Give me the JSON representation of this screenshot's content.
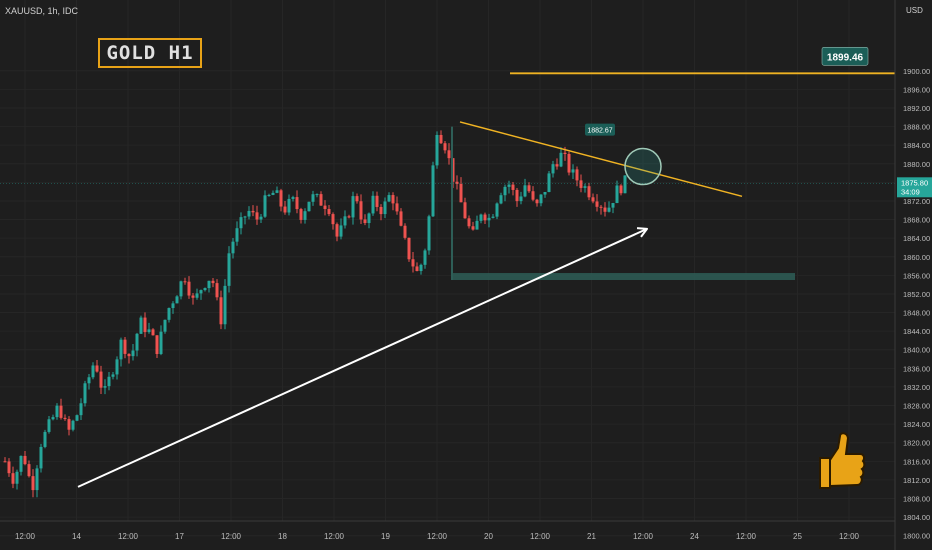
{
  "symbol": "XAUUSD, 1h, IDC",
  "currency": "USD",
  "title_box": "GOLD  H1",
  "colors": {
    "background": "#1e1e1e",
    "bull": "#26a69a",
    "bear": "#ef5350",
    "trendline": "#f0b323",
    "arrow": "#ffffff",
    "support_zone": "#2e5e57",
    "price_tag": "#1b5e57"
  },
  "icons": [
    "thumbs-up-icon"
  ],
  "chart_data": {
    "type": "candlestick",
    "ylim": [
      1798,
      1912
    ],
    "y_ticks": [
      1800,
      1804,
      1808,
      1812,
      1816,
      1820,
      1824,
      1828,
      1832,
      1836,
      1840,
      1844,
      1848,
      1852,
      1856,
      1860,
      1864,
      1868,
      1872,
      1876,
      1880,
      1884,
      1888,
      1892,
      1896,
      1900
    ],
    "x_ticks": [
      "12:00",
      "14",
      "12:00",
      "17",
      "12:00",
      "18",
      "12:00",
      "19",
      "12:00",
      "20",
      "12:00",
      "21",
      "12:00",
      "24",
      "12:00",
      "25",
      "12:00"
    ],
    "current_price": "1875.80",
    "countdown": "34:09",
    "annotations": {
      "resistance_level": "1899.46",
      "swing_high": "1882.67"
    },
    "path": [
      1816,
      1812,
      1818,
      1810,
      1820,
      1824,
      1828,
      1822,
      1826,
      1832,
      1838,
      1830,
      1836,
      1842,
      1838,
      1846,
      1844,
      1840,
      1848,
      1852,
      1856,
      1850,
      1854,
      1856,
      1846,
      1862,
      1866,
      1870,
      1868,
      1872,
      1874,
      1870,
      1872,
      1869,
      1873,
      1872,
      1871,
      1864,
      1868,
      1874,
      1866,
      1872,
      1870,
      1874,
      1866,
      1860,
      1856,
      1864,
      1888,
      1884,
      1876,
      1870,
      1864,
      1870,
      1868,
      1874,
      1876,
      1872,
      1876,
      1870,
      1874,
      1880,
      1882,
      1878,
      1876,
      1874,
      1872,
      1870,
      1874,
      1876
    ]
  }
}
